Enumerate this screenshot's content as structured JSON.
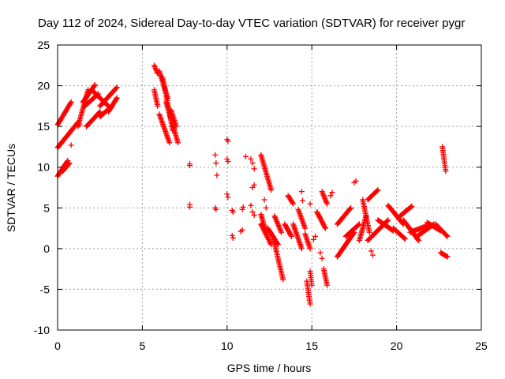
{
  "chart_data": {
    "type": "scatter",
    "title": "Day 112 of 2024, Sidereal Day-to-day VTEC variation (SDTVAR) for receiver pygr",
    "xlabel": "GPS time / hours",
    "ylabel": "SDTVAR / TECUs",
    "xlim": [
      0,
      25
    ],
    "ylim": [
      -10,
      25
    ],
    "xticks": [
      "0",
      "5",
      "10",
      "15",
      "20",
      "25"
    ],
    "yticks": [
      "-10",
      "-5",
      "0",
      "5",
      "10",
      "15",
      "20",
      "25"
    ],
    "grid": true,
    "marker": "+",
    "color": "#ff0000",
    "segments": [
      {
        "x0": 0.0,
        "x1": 0.8,
        "y0": 15.2,
        "y1": 18.0
      },
      {
        "x0": 0.0,
        "x1": 1.2,
        "y0": 12.4,
        "y1": 15.5
      },
      {
        "x0": 0.0,
        "x1": 0.6,
        "y0": 8.9,
        "y1": 10.8
      },
      {
        "x0": 0.3,
        "x1": 0.7,
        "y0": 9.5,
        "y1": 10.5
      },
      {
        "x0": 1.2,
        "x1": 1.8,
        "y0": 15.0,
        "y1": 19.5
      },
      {
        "x0": 1.5,
        "x1": 2.2,
        "y0": 18.0,
        "y1": 20.1
      },
      {
        "x0": 2.0,
        "x1": 3.0,
        "y0": 19.5,
        "y1": 17.5
      },
      {
        "x0": 2.5,
        "x1": 3.5,
        "y0": 17.5,
        "y1": 19.8
      },
      {
        "x0": 1.6,
        "x1": 2.4,
        "y0": 17.5,
        "y1": 19.0
      },
      {
        "x0": 1.7,
        "x1": 2.5,
        "y0": 15.0,
        "y1": 16.8
      },
      {
        "x0": 2.5,
        "x1": 3.2,
        "y0": 16.2,
        "y1": 17.5
      },
      {
        "x0": 3.0,
        "x1": 3.5,
        "y0": 16.8,
        "y1": 18.5
      },
      {
        "x0": 5.7,
        "x1": 5.9,
        "y0": 22.5,
        "y1": 21.5
      },
      {
        "x0": 5.7,
        "x1": 5.9,
        "y0": 19.5,
        "y1": 17.5
      },
      {
        "x0": 6.0,
        "x1": 6.5,
        "y0": 21.8,
        "y1": 18.5
      },
      {
        "x0": 6.2,
        "x1": 6.8,
        "y0": 21.0,
        "y1": 14.5
      },
      {
        "x0": 6.0,
        "x1": 6.6,
        "y0": 16.5,
        "y1": 13.0
      },
      {
        "x0": 6.4,
        "x1": 7.1,
        "y0": 18.0,
        "y1": 13.0
      },
      {
        "x0": 6.7,
        "x1": 7.0,
        "y0": 17.0,
        "y1": 15.0
      },
      {
        "x0": 12.0,
        "x1": 12.6,
        "y0": 11.5,
        "y1": 7.2
      },
      {
        "x0": 12.0,
        "x1": 12.3,
        "y0": 4.2,
        "y1": 2.0
      },
      {
        "x0": 12.0,
        "x1": 12.6,
        "y0": 3.0,
        "y1": 0.5
      },
      {
        "x0": 12.4,
        "x1": 13.0,
        "y0": 2.5,
        "y1": 0.5
      },
      {
        "x0": 12.7,
        "x1": 13.3,
        "y0": 1.5,
        "y1": -3.8
      },
      {
        "x0": 12.8,
        "x1": 13.2,
        "y0": 4.0,
        "y1": 2.0
      },
      {
        "x0": 13.4,
        "x1": 13.8,
        "y0": 3.0,
        "y1": 1.5
      },
      {
        "x0": 13.6,
        "x1": 13.9,
        "y0": 6.5,
        "y1": 5.5
      },
      {
        "x0": 13.9,
        "x1": 14.4,
        "y0": 3.0,
        "y1": 0.0
      },
      {
        "x0": 14.2,
        "x1": 14.6,
        "y0": 4.8,
        "y1": 2.5
      },
      {
        "x0": 14.6,
        "x1": 14.9,
        "y0": 1.8,
        "y1": 0.0
      },
      {
        "x0": 14.7,
        "x1": 14.9,
        "y0": -4.0,
        "y1": -6.8
      },
      {
        "x0": 14.9,
        "x1": 15.0,
        "y0": -2.8,
        "y1": -4.5
      },
      {
        "x0": 15.3,
        "x1": 15.8,
        "y0": 4.5,
        "y1": 2.5
      },
      {
        "x0": 15.6,
        "x1": 15.9,
        "y0": 7.0,
        "y1": 5.5
      },
      {
        "x0": 15.7,
        "x1": 15.9,
        "y0": -2.5,
        "y1": -4.5
      },
      {
        "x0": 16.5,
        "x1": 17.5,
        "y0": -1.0,
        "y1": 2.0
      },
      {
        "x0": 16.5,
        "x1": 17.3,
        "y0": 3.0,
        "y1": 5.0
      },
      {
        "x0": 17.0,
        "x1": 17.8,
        "y0": 1.5,
        "y1": 3.0
      },
      {
        "x0": 17.8,
        "x1": 18.2,
        "y0": 1.0,
        "y1": 4.0
      },
      {
        "x0": 18.0,
        "x1": 18.4,
        "y0": 6.0,
        "y1": 2.0
      },
      {
        "x0": 18.3,
        "x1": 18.9,
        "y0": 6.0,
        "y1": 7.2
      },
      {
        "x0": 18.3,
        "x1": 19.5,
        "y0": 1.0,
        "y1": 3.5
      },
      {
        "x0": 18.9,
        "x1": 19.8,
        "y0": 3.5,
        "y1": 2.2
      },
      {
        "x0": 19.5,
        "x1": 20.4,
        "y0": 5.3,
        "y1": 3.0
      },
      {
        "x0": 19.8,
        "x1": 20.5,
        "y0": 2.5,
        "y1": 1.2
      },
      {
        "x0": 20.2,
        "x1": 20.9,
        "y0": 4.0,
        "y1": 5.2
      },
      {
        "x0": 20.4,
        "x1": 21.3,
        "y0": 3.5,
        "y1": 1.0
      },
      {
        "x0": 20.8,
        "x1": 21.8,
        "y0": 2.0,
        "y1": 2.8
      },
      {
        "x0": 21.2,
        "x1": 22.2,
        "y0": 1.5,
        "y1": 3.0
      },
      {
        "x0": 21.8,
        "x1": 22.6,
        "y0": 3.2,
        "y1": 2.2
      },
      {
        "x0": 22.3,
        "x1": 23.0,
        "y0": 3.0,
        "y1": 1.5
      },
      {
        "x0": 22.6,
        "x1": 23.0,
        "y0": -0.5,
        "y1": -1.0
      },
      {
        "x0": 22.7,
        "x1": 22.9,
        "y0": 12.5,
        "y1": 9.5
      }
    ],
    "points": [
      [
        0.8,
        12.7
      ],
      [
        1.3,
        15.2
      ],
      [
        7.8,
        10.4
      ],
      [
        7.8,
        10.2
      ],
      [
        7.8,
        5.4
      ],
      [
        7.8,
        5.1
      ],
      [
        9.3,
        11.5
      ],
      [
        9.35,
        10.5
      ],
      [
        9.4,
        9.0
      ],
      [
        9.3,
        5.0
      ],
      [
        9.35,
        4.8
      ],
      [
        10.0,
        13.4
      ],
      [
        10.05,
        13.2
      ],
      [
        10.0,
        11.0
      ],
      [
        10.05,
        10.7
      ],
      [
        10.0,
        6.7
      ],
      [
        10.05,
        6.3
      ],
      [
        10.3,
        4.7
      ],
      [
        10.35,
        4.5
      ],
      [
        10.3,
        1.6
      ],
      [
        10.35,
        1.3
      ],
      [
        10.8,
        2.1
      ],
      [
        10.9,
        2.3
      ],
      [
        10.9,
        4.8
      ],
      [
        10.95,
        5.1
      ],
      [
        11.1,
        11.3
      ],
      [
        11.4,
        11.0
      ],
      [
        11.5,
        10.5
      ],
      [
        11.6,
        9.8
      ],
      [
        11.5,
        7.5
      ],
      [
        11.6,
        7.8
      ],
      [
        11.4,
        5.3
      ],
      [
        11.5,
        4.5
      ],
      [
        11.6,
        4.1
      ],
      [
        12.2,
        6.0
      ],
      [
        12.3,
        5.0
      ],
      [
        14.4,
        7.0
      ],
      [
        14.45,
        5.9
      ],
      [
        14.9,
        5.5
      ],
      [
        15.1,
        1.1
      ],
      [
        15.2,
        1.5
      ],
      [
        15.5,
        -0.5
      ],
      [
        15.6,
        -1.2
      ],
      [
        16.1,
        6.5
      ],
      [
        16.2,
        6.9
      ],
      [
        17.5,
        8.1
      ],
      [
        17.6,
        8.3
      ],
      [
        18.5,
        -0.3
      ],
      [
        18.6,
        -0.8
      ]
    ]
  }
}
